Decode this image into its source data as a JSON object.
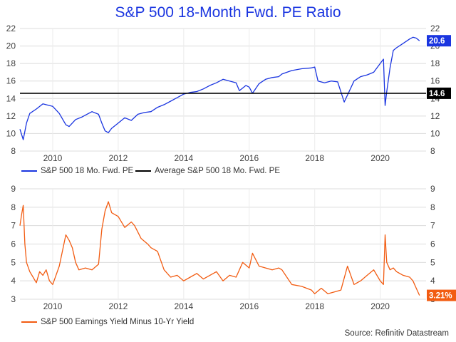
{
  "title": "S&P 500 18-Month Fwd. PE Ratio",
  "source": "Source: Refinitiv Datastream",
  "colors": {
    "pe": "#1a35e0",
    "avg": "#000000",
    "ey": "#f25c12"
  },
  "legend_top": {
    "pe": "S&P 500 18 Mo. Fwd. PE",
    "avg": "Average S&P 500 18 Mo. Fwd. PE"
  },
  "legend_bottom": {
    "ey": "S&P 500 Earnings Yield Minus 10-Yr Yield"
  },
  "labels": {
    "pe_last": "20.6",
    "avg": "14.6",
    "ey_last": "3.21%"
  },
  "chart_data": [
    {
      "type": "line",
      "title": "S&P 500 18-Month Fwd. PE Ratio",
      "xlim": [
        2009.0,
        2021.4
      ],
      "ylim": [
        8,
        22
      ],
      "xticks": [
        "2010",
        "2012",
        "2014",
        "2016",
        "2018",
        "2020"
      ],
      "yticks": [
        "8",
        "10",
        "12",
        "14",
        "16",
        "18",
        "20",
        "22"
      ],
      "grid": true,
      "legend": "bottom",
      "series": [
        {
          "name": "S&P 500 18 Mo. Fwd. PE",
          "x": [
            2009.0,
            2009.1,
            2009.2,
            2009.3,
            2009.5,
            2009.7,
            2009.9,
            2010.0,
            2010.2,
            2010.4,
            2010.5,
            2010.7,
            2010.9,
            2011.0,
            2011.2,
            2011.4,
            2011.5,
            2011.6,
            2011.7,
            2011.8,
            2012.0,
            2012.2,
            2012.4,
            2012.6,
            2012.8,
            2013.0,
            2013.2,
            2013.4,
            2013.6,
            2013.8,
            2014.0,
            2014.2,
            2014.4,
            2014.6,
            2014.8,
            2015.0,
            2015.2,
            2015.4,
            2015.6,
            2015.7,
            2015.9,
            2016.0,
            2016.1,
            2016.3,
            2016.5,
            2016.7,
            2016.9,
            2017.0,
            2017.3,
            2017.6,
            2017.9,
            2018.0,
            2018.1,
            2018.3,
            2018.5,
            2018.7,
            2018.9,
            2019.0,
            2019.2,
            2019.4,
            2019.6,
            2019.8,
            2020.0,
            2020.1,
            2020.15,
            2020.2,
            2020.3,
            2020.4,
            2020.5,
            2020.7,
            2020.9,
            2021.0,
            2021.1,
            2021.2
          ],
          "y": [
            10.5,
            9.3,
            11.2,
            12.3,
            12.8,
            13.4,
            13.2,
            13.1,
            12.3,
            11.0,
            10.8,
            11.6,
            11.9,
            12.1,
            12.5,
            12.2,
            11.2,
            10.3,
            10.1,
            10.6,
            11.2,
            11.8,
            11.5,
            12.2,
            12.4,
            12.5,
            13.0,
            13.3,
            13.7,
            14.1,
            14.5,
            14.7,
            14.8,
            15.1,
            15.5,
            15.8,
            16.2,
            16.0,
            15.8,
            14.9,
            15.5,
            15.3,
            14.6,
            15.7,
            16.2,
            16.4,
            16.5,
            16.8,
            17.2,
            17.4,
            17.5,
            17.6,
            16.0,
            15.8,
            16.0,
            15.9,
            13.6,
            14.4,
            16.0,
            16.5,
            16.7,
            17.0,
            18.0,
            18.5,
            13.2,
            14.8,
            17.5,
            19.5,
            19.8,
            20.3,
            20.8,
            21.0,
            20.9,
            20.6
          ]
        },
        {
          "name": "Average S&P 500 18 Mo. Fwd. PE",
          "x": [
            2009.0,
            2021.2
          ],
          "y": [
            14.6,
            14.6
          ]
        }
      ]
    },
    {
      "type": "line",
      "xlim": [
        2009.0,
        2021.4
      ],
      "ylim": [
        3,
        9
      ],
      "xticks": [
        "2010",
        "2012",
        "2014",
        "2016",
        "2018",
        "2020"
      ],
      "yticks": [
        "3",
        "4",
        "5",
        "6",
        "7",
        "8",
        "9"
      ],
      "grid": true,
      "legend": "bottom",
      "series": [
        {
          "name": "S&P 500 Earnings Yield Minus 10-Yr Yield",
          "x": [
            2009.0,
            2009.05,
            2009.1,
            2009.15,
            2009.2,
            2009.3,
            2009.4,
            2009.5,
            2009.6,
            2009.7,
            2009.8,
            2009.9,
            2010.0,
            2010.2,
            2010.4,
            2010.5,
            2010.6,
            2010.7,
            2010.8,
            2011.0,
            2011.2,
            2011.4,
            2011.5,
            2011.6,
            2011.7,
            2011.8,
            2012.0,
            2012.2,
            2012.4,
            2012.5,
            2012.7,
            2012.9,
            2013.0,
            2013.2,
            2013.4,
            2013.6,
            2013.8,
            2014.0,
            2014.2,
            2014.4,
            2014.6,
            2014.8,
            2015.0,
            2015.2,
            2015.4,
            2015.6,
            2015.8,
            2016.0,
            2016.1,
            2016.3,
            2016.5,
            2016.7,
            2016.9,
            2017.0,
            2017.3,
            2017.6,
            2017.9,
            2018.0,
            2018.2,
            2018.4,
            2018.6,
            2018.8,
            2019.0,
            2019.2,
            2019.4,
            2019.6,
            2019.8,
            2020.0,
            2020.1,
            2020.15,
            2020.2,
            2020.3,
            2020.4,
            2020.5,
            2020.7,
            2020.9,
            2021.0,
            2021.1,
            2021.2
          ],
          "y": [
            7.0,
            7.6,
            8.1,
            6.0,
            5.0,
            4.5,
            4.2,
            3.9,
            4.5,
            4.3,
            4.6,
            4.0,
            3.8,
            4.8,
            6.5,
            6.2,
            5.8,
            5.0,
            4.6,
            4.7,
            4.6,
            4.9,
            6.8,
            7.8,
            8.3,
            7.7,
            7.5,
            6.9,
            7.2,
            7.0,
            6.3,
            6.0,
            5.8,
            5.6,
            4.6,
            4.2,
            4.3,
            4.0,
            4.2,
            4.4,
            4.1,
            4.3,
            4.5,
            4.0,
            4.3,
            4.2,
            5.0,
            4.7,
            5.5,
            4.8,
            4.7,
            4.6,
            4.7,
            4.6,
            3.8,
            3.7,
            3.5,
            3.3,
            3.6,
            3.3,
            3.4,
            3.5,
            4.8,
            3.8,
            4.0,
            4.3,
            4.6,
            4.0,
            3.8,
            6.5,
            5.0,
            4.6,
            4.7,
            4.5,
            4.3,
            4.2,
            4.0,
            3.6,
            3.21
          ]
        }
      ]
    }
  ]
}
